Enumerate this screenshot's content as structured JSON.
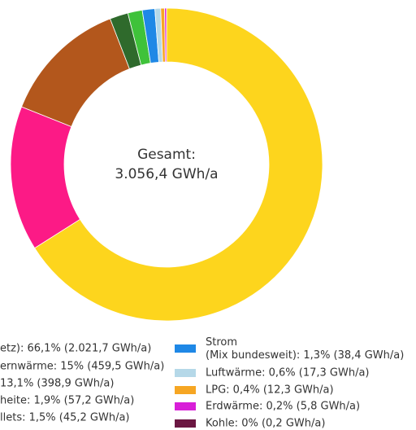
{
  "chart_data": {
    "type": "donut",
    "center_title": "Gesamt:",
    "center_value": "3.056,4 GWh/a",
    "categories": [
      "etz): 66,1% (2.021,7 GWh/a)",
      "ernwärme: 15% (459,5 GWh/a)",
      "13,1% (398,9 GWh/a)",
      "heite: 1,9% (57,2 GWh/a)",
      "llets: 1,5% (45,2 GWh/a)",
      [
        "Strom",
        "(Mix bundesweit): 1,3% (38,4 GWh/a)"
      ],
      "Luftwärme: 0,6% (17,3 GWh/a)",
      "LPG: 0,4% (12,3 GWh/a)",
      "Erdwärme: 0,2% (5,8 GWh/a)",
      "Kohle: 0% (0,2 GWh/a)"
    ],
    "values": [
      66.1,
      15,
      13.1,
      1.9,
      1.5,
      1.3,
      0.6,
      0.4,
      0.2,
      0
    ],
    "colors": [
      "#fdd51d",
      "#fc1a86",
      "#b3571c",
      "#2f6a2c",
      "#3fc23a",
      "#1f88e6",
      "#b5d8e8",
      "#f6a623",
      "#d81fd8",
      "#6b1742"
    ]
  }
}
